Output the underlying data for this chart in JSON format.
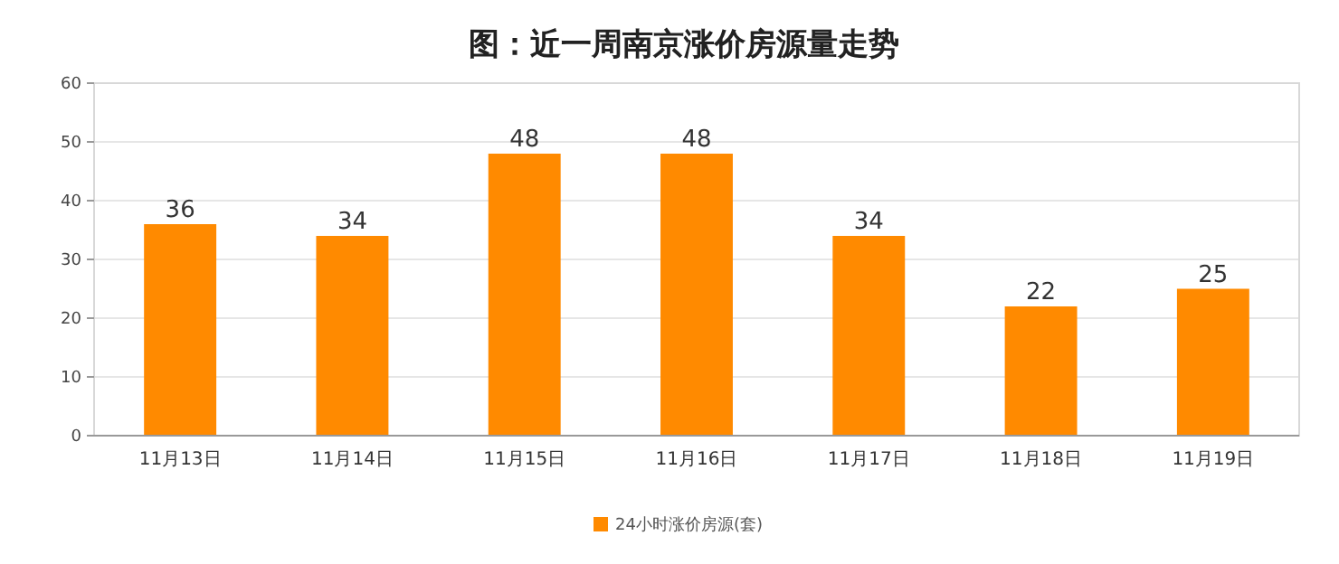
{
  "chart_data": {
    "type": "bar",
    "title": "图：近一周南京涨价房源量走势",
    "categories": [
      "11月13日",
      "11月14日",
      "11月15日",
      "11月16日",
      "11月17日",
      "11月18日",
      "11月19日"
    ],
    "series": [
      {
        "name": "24小时涨价房源(套)",
        "color": "#ff8a00",
        "values": [
          36,
          34,
          48,
          48,
          34,
          22,
          25
        ]
      }
    ],
    "ylim": [
      0,
      60
    ],
    "yticks": [
      0,
      10,
      20,
      30,
      40,
      50,
      60
    ],
    "grid": "y",
    "legend": "bottom",
    "data_labels": true
  }
}
